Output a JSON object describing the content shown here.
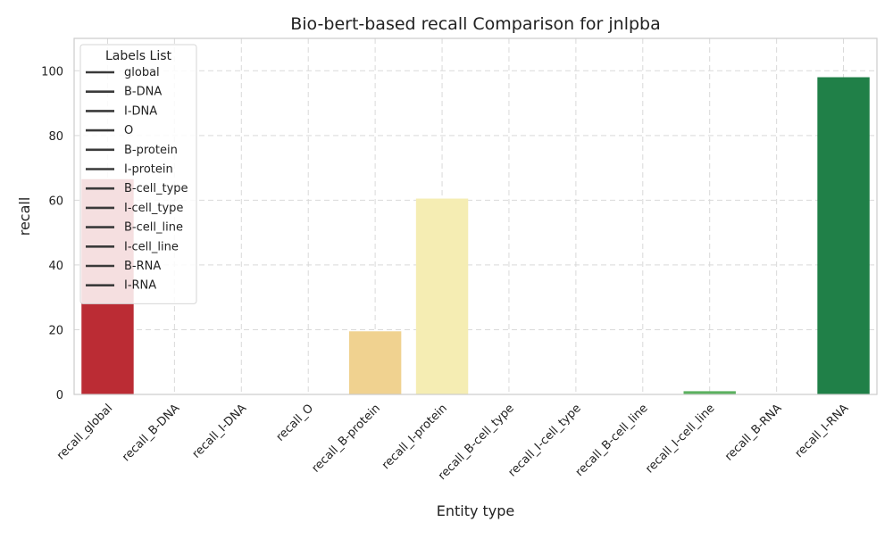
{
  "chart_data": {
    "type": "bar",
    "title": "Bio-bert-based recall Comparison for jnlpba",
    "xlabel": "Entity type",
    "ylabel": "recall",
    "ylim": [
      0,
      110
    ],
    "yticks": [
      0,
      20,
      40,
      60,
      80,
      100
    ],
    "grid": true,
    "categories": [
      "recall_global",
      "recall_B-DNA",
      "recall_I-DNA",
      "recall_O",
      "recall_B-protein",
      "recall_I-protein",
      "recall_B-cell_type",
      "recall_I-cell_type",
      "recall_B-cell_line",
      "recall_I-cell_line",
      "recall_B-RNA",
      "recall_I-RNA"
    ],
    "values": [
      66.5,
      0,
      0,
      0,
      19.5,
      60.5,
      0,
      0,
      0,
      1.0,
      0,
      98.0
    ],
    "colors": [
      "#bb2c34",
      "#e85e3d",
      "#f5a25d",
      "#fcd184",
      "#f0d290",
      "#f5edb3",
      "#e2ee9a",
      "#b8df78",
      "#8bc865",
      "#5bb15f",
      "#2e9b53",
      "#208048"
    ],
    "legend": {
      "title": "Labels List",
      "position": "upper-left",
      "entries": [
        "global",
        "B-DNA",
        "I-DNA",
        "O",
        "B-protein",
        "I-protein",
        "B-cell_type",
        "I-cell_type",
        "B-cell_line",
        "I-cell_line",
        "B-RNA",
        "I-RNA"
      ]
    }
  }
}
